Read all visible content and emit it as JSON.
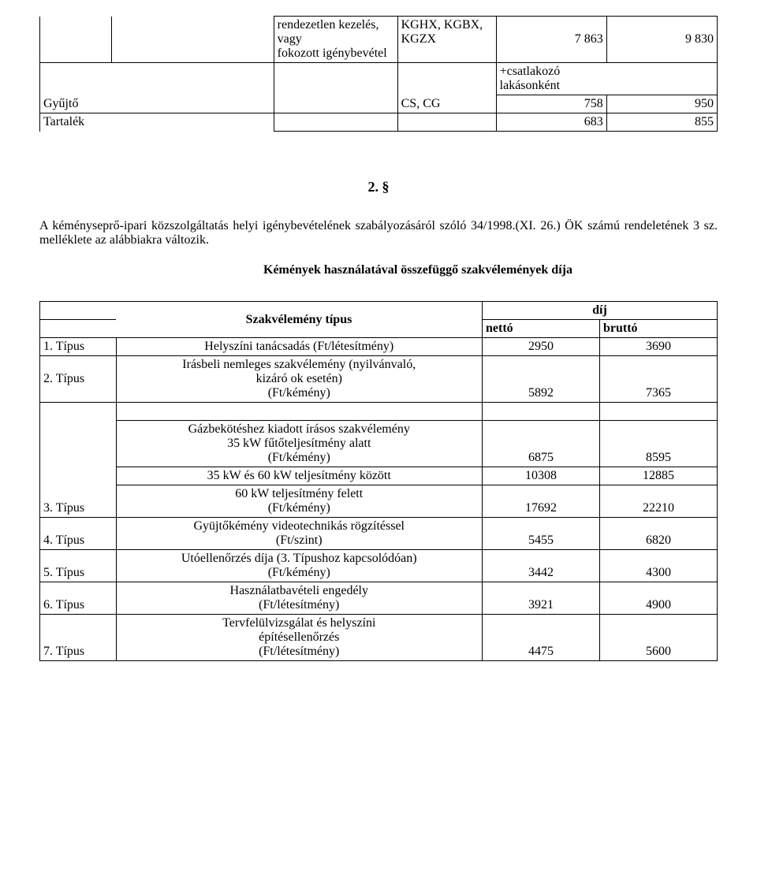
{
  "table1": {
    "r1": {
      "desc_l1": "rendezetlen kezelés, vagy",
      "desc_l2": "fokozott igénybevétel",
      "code_l1": "KGHX, KGBX,",
      "code_l2": "KGZX",
      "v1": "7 863",
      "v2": "9 830"
    },
    "r2": {
      "label": "Gyűjtő",
      "code": "CS, CG",
      "note_l1": "+csatlakozó",
      "note_l2": "lakásonként"
    },
    "r3": {
      "v1": "758",
      "v2": "950"
    },
    "r4": {
      "label": "Tartalék",
      "v1": "683",
      "v2": "855"
    }
  },
  "section_num": "2. §",
  "paragraph": "A kéményseprő-ipari közszolgáltatás helyi igénybevételének szabályozásáról szóló 34/1998.(XI. 26.) ÖK számú rendeletének 3 sz. melléklete az alábbiakra változik.",
  "subtitle": "Kémények használatával összefüggő szakvélemények díja",
  "table2": {
    "hdr_type": "Szakvélemény típus",
    "hdr_fee": "díj",
    "hdr_net": "nettó",
    "hdr_gross": "bruttó",
    "rows": [
      {
        "type": "1. Típus",
        "desc": "Helyszíni  tanácsadás (Ft/létesítmény)",
        "v1": "2950",
        "v2": "3690"
      },
      {
        "type": "2. Típus",
        "desc_l1": "Irásbeli nemleges szakvélemény (nyilvánvaló,",
        "desc_l2": "kizáró ok esetén)",
        "desc_l3": "(Ft/kémény)",
        "v1": "5892",
        "v2": "7365"
      },
      {
        "type": "3. Típus",
        "block_l1": "Gázbekötéshez kiadott írásos szakvélemény",
        "block_l2": "35 kW fűtőteljesítmény alatt",
        "block_l3": "(Ft/kémény)",
        "bv1": "6875",
        "bv2": "8595",
        "mid_desc": "35 kW és 60 kW teljesítmény között",
        "mv1": "10308",
        "mv2": "12885",
        "bot_l1": "60 kW teljesítmény felett",
        "bot_l2": "(Ft/kémény)",
        "botv1": "17692",
        "botv2": "22210"
      },
      {
        "type": "4. Típus",
        "desc_l1": "Gyüjtőkémény videotechnikás rögzítéssel",
        "desc_l2": "(Ft/szint)",
        "v1": "5455",
        "v2": "6820"
      },
      {
        "type": "5. Típus",
        "desc_l1": "Utóellenőrzés díja (3. Típushoz kapcsolódóan)",
        "desc_l2": "(Ft/kémény)",
        "v1": "3442",
        "v2": "4300"
      },
      {
        "type": "6. Típus",
        "desc_l1": "Használatbavételi engedély",
        "desc_l2": "(Ft/létesítmény)",
        "v1": "3921",
        "v2": "4900"
      },
      {
        "type": "7. Típus",
        "desc_l1": "Tervfelülvizsgálat és helyszíni",
        "desc_l2": "építésellenőrzés",
        "desc_l3": "(Ft/létesítmény)",
        "v1": "4475",
        "v2": "5600"
      }
    ]
  }
}
